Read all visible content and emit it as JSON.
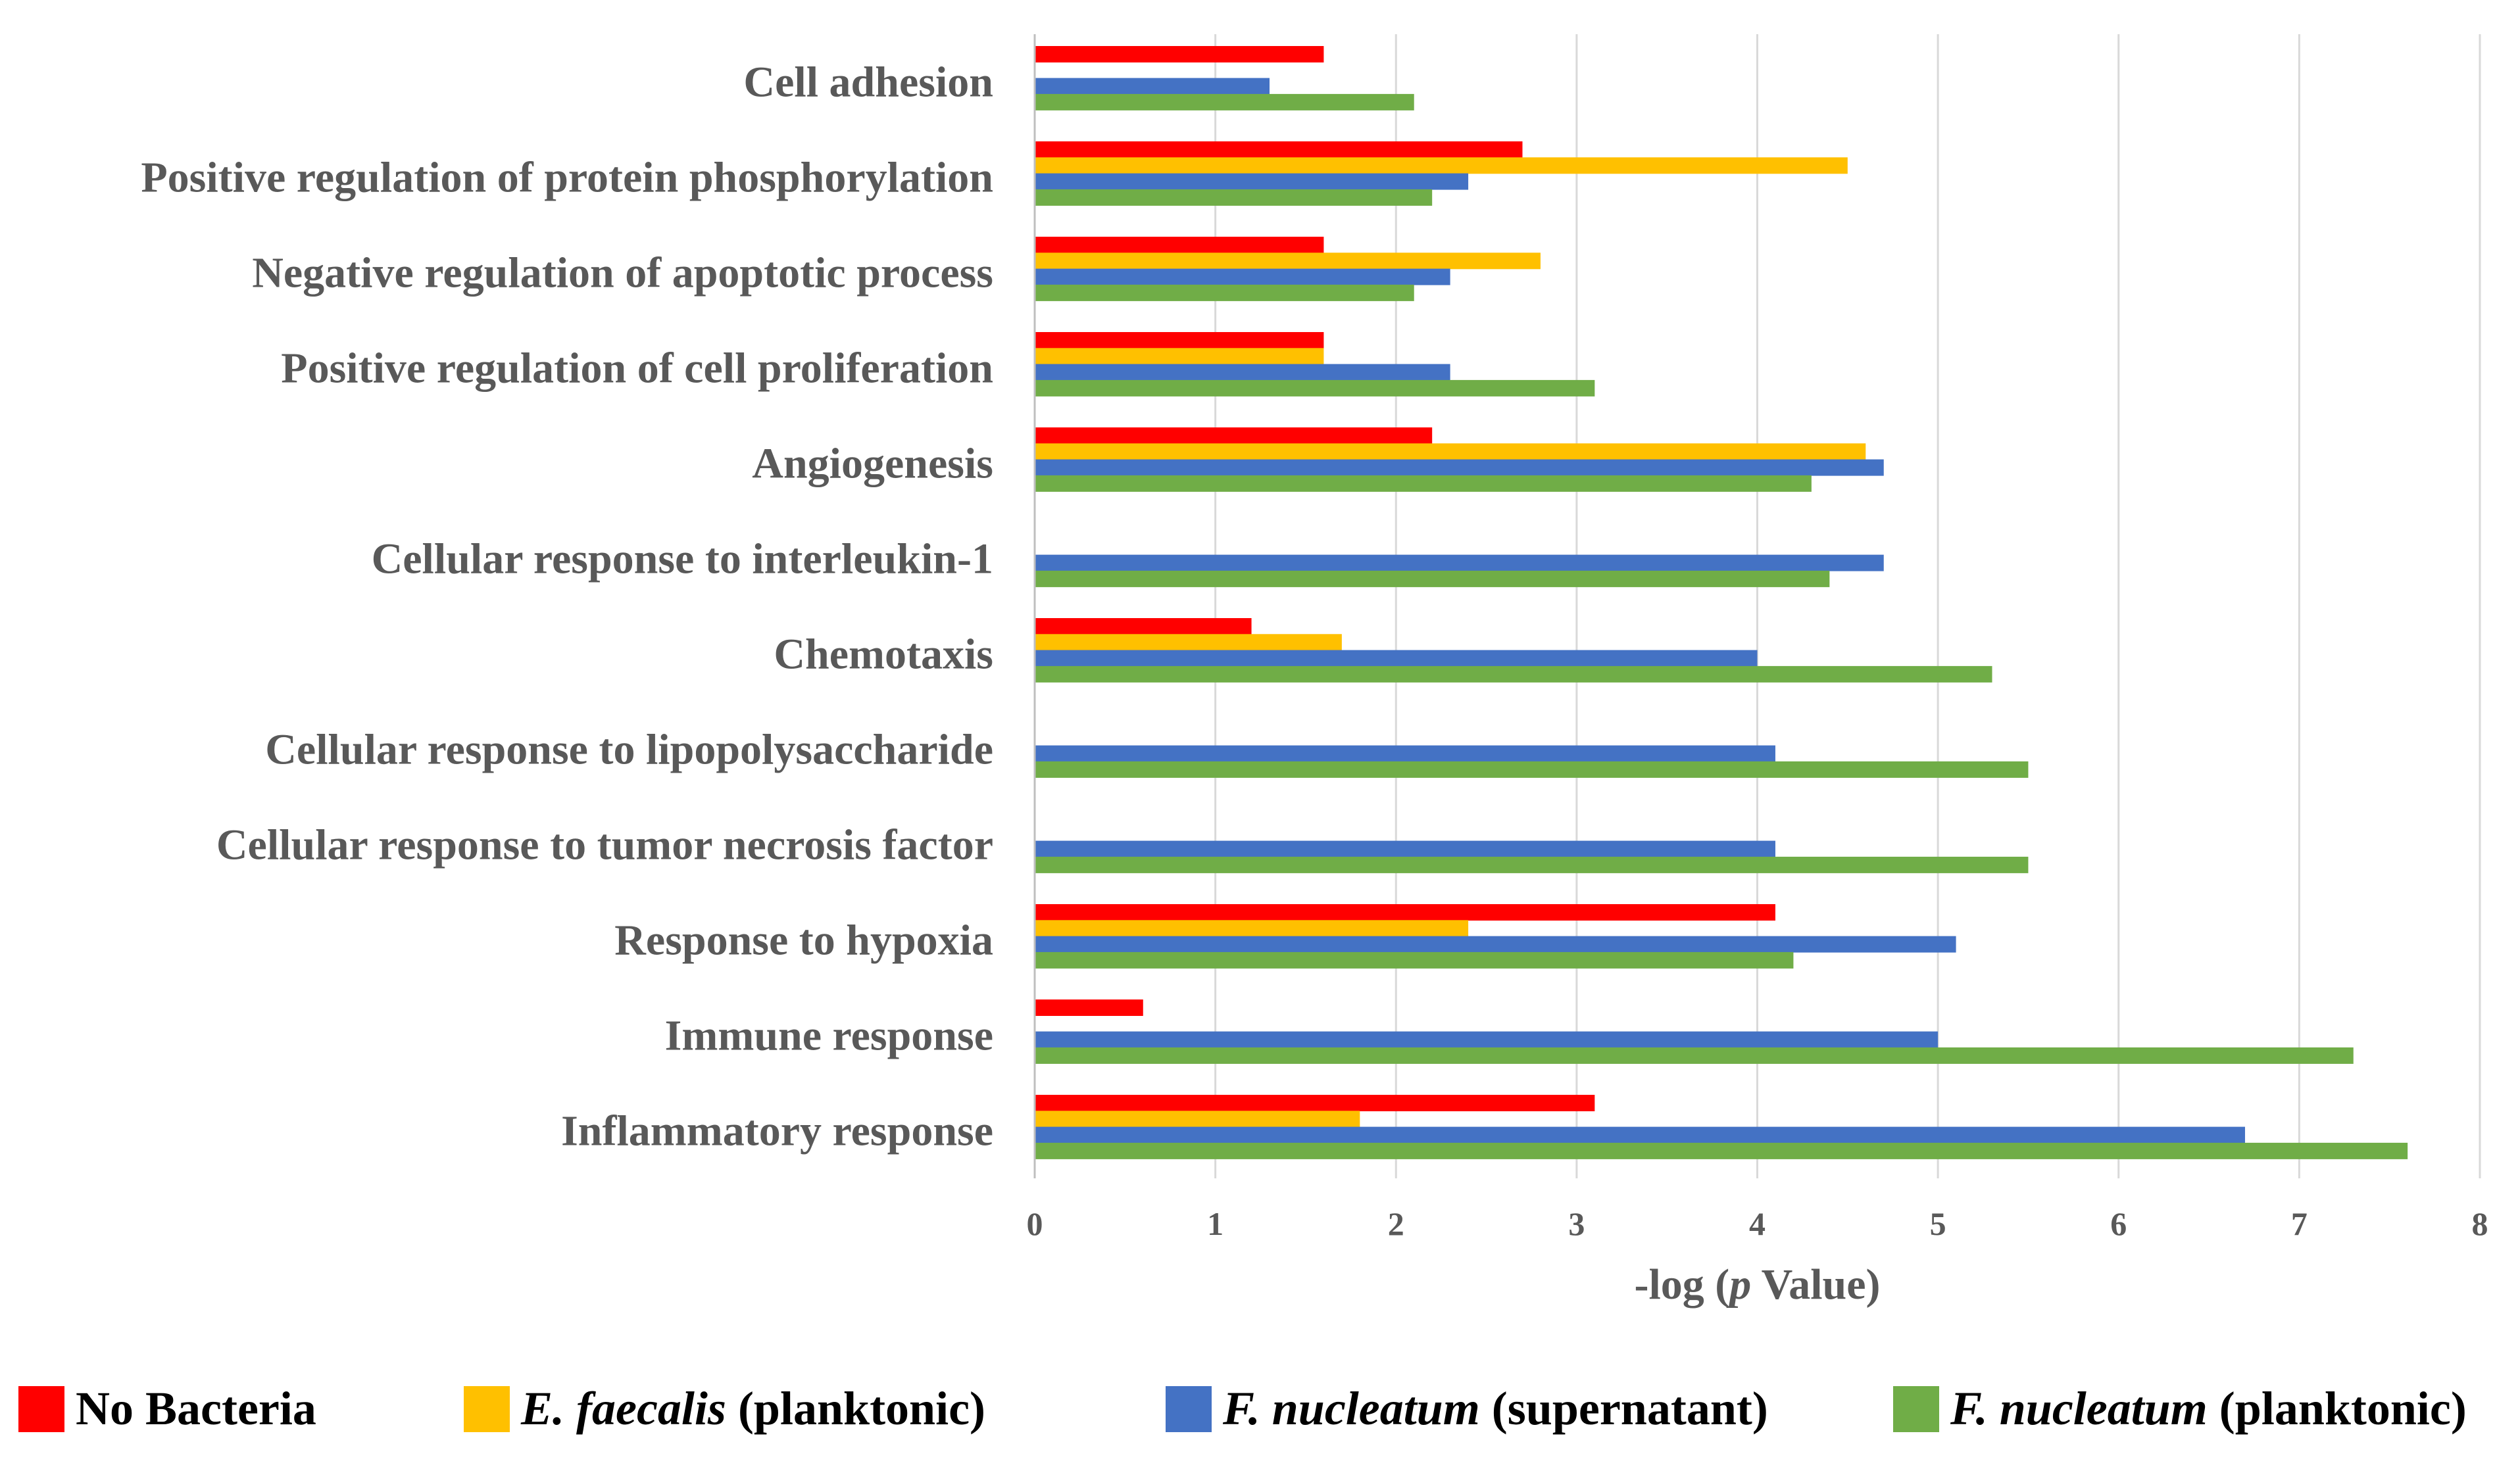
{
  "chart_data": {
    "type": "bar",
    "orientation": "horizontal",
    "categories": [
      "Cell adhesion",
      "Positive regulation of protein phosphorylation",
      "Negative regulation of apoptotic process",
      "Positive regulation of cell proliferation",
      "Angiogenesis",
      "Cellular response to interleukin-1",
      "Chemotaxis",
      "Cellular response to lipopolysaccharide",
      "Cellular response to tumor necrosis factor",
      "Response to hypoxia",
      "Immune response",
      "Inflammatory response"
    ],
    "series": [
      {
        "name": "No Bacteria",
        "color": "#FF0000",
        "values": [
          1.6,
          2.7,
          1.6,
          1.6,
          2.2,
          null,
          1.2,
          null,
          null,
          4.1,
          0.6,
          3.1
        ]
      },
      {
        "name": "E. faecalis (planktonic)",
        "color": "#FFC000",
        "values": [
          null,
          4.5,
          2.8,
          1.6,
          4.6,
          null,
          1.7,
          null,
          null,
          2.4,
          null,
          1.8
        ]
      },
      {
        "name": "F. nucleatum (supernatant)",
        "color": "#4472C4",
        "values": [
          1.3,
          2.4,
          2.3,
          2.3,
          4.7,
          4.7,
          4.0,
          4.1,
          4.1,
          5.1,
          5.0,
          6.7
        ]
      },
      {
        "name": "F. nucleatum (planktonic)",
        "color": "#70AD47",
        "values": [
          2.1,
          2.2,
          2.1,
          3.1,
          4.3,
          4.4,
          5.3,
          5.5,
          5.5,
          4.2,
          7.3,
          7.6
        ]
      }
    ],
    "xlim": [
      0,
      8
    ],
    "xticks": [
      "0",
      "1",
      "2",
      "3",
      "4",
      "5",
      "6",
      "7",
      "8"
    ],
    "xlabel_parts": [
      "-log (",
      "p",
      " Value)"
    ],
    "legend": [
      {
        "italic": "",
        "normal": "No Bacteria",
        "color": "#FF0000"
      },
      {
        "italic": "E. faecalis",
        "normal": " (planktonic)",
        "color": "#FFC000"
      },
      {
        "italic": "F. nucleatum",
        "normal": " (supernatant)",
        "color": "#4472C4"
      },
      {
        "italic": "F. nucleatum",
        "normal": " (planktonic)",
        "color": "#70AD47"
      }
    ],
    "legend_position": "bottom",
    "grid": "vertical",
    "gridColor": "#D9D9D9",
    "axisColor": "#BFBFBF"
  }
}
